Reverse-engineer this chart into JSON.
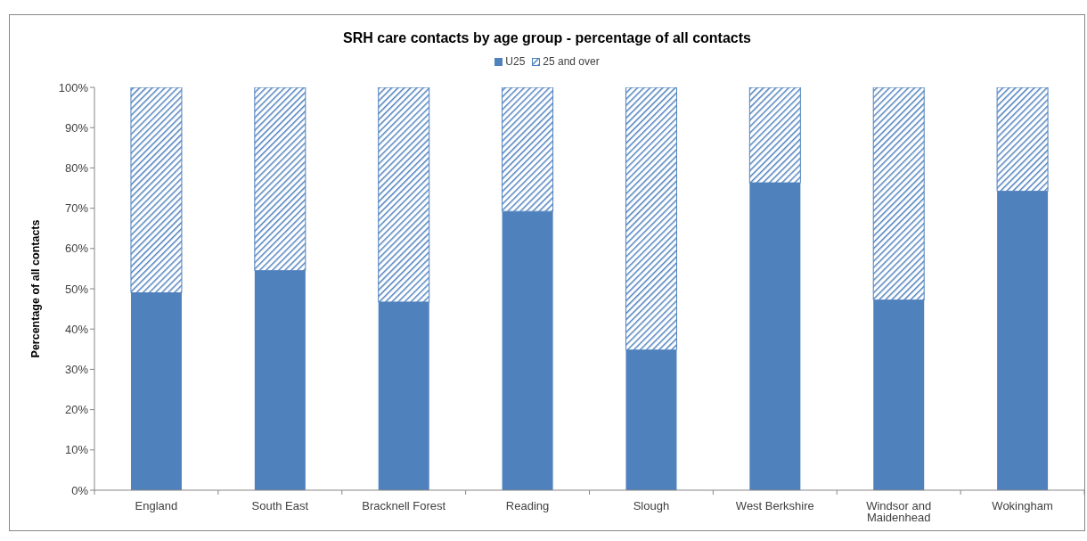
{
  "chart_data": {
    "type": "bar",
    "title": "SRH care contacts by age group - percentage of all contacts",
    "ylabel": "Percentage of all contacts",
    "categories": [
      "England",
      "South East",
      "Bracknell Forest",
      "Reading",
      "Slough",
      "West Berkshire",
      "Windsor and Maidenhead",
      "Wokingham"
    ],
    "series": [
      {
        "name": "U25",
        "color": "#4f81bd",
        "values": [
          49,
          54.5,
          46.7,
          69.2,
          34.8,
          76.3,
          47.2,
          74.2
        ]
      },
      {
        "name": "25 and over",
        "color": "#4f81bd",
        "values": [
          51,
          45.5,
          53.3,
          30.8,
          65.2,
          23.7,
          52.8,
          25.8
        ]
      }
    ],
    "stacked": true,
    "ylim": [
      0,
      100
    ],
    "yticks": [
      {
        "value": 0,
        "label": "0%"
      },
      {
        "value": 10,
        "label": "10%"
      },
      {
        "value": 20,
        "label": "20%"
      },
      {
        "value": 30,
        "label": "30%"
      },
      {
        "value": 40,
        "label": "40%"
      },
      {
        "value": 50,
        "label": "50%"
      },
      {
        "value": 60,
        "label": "60%"
      },
      {
        "value": 70,
        "label": "70%"
      },
      {
        "value": 80,
        "label": "80%"
      },
      {
        "value": 90,
        "label": "90%"
      },
      {
        "value": 100,
        "label": "100%"
      }
    ],
    "legend": "top"
  }
}
